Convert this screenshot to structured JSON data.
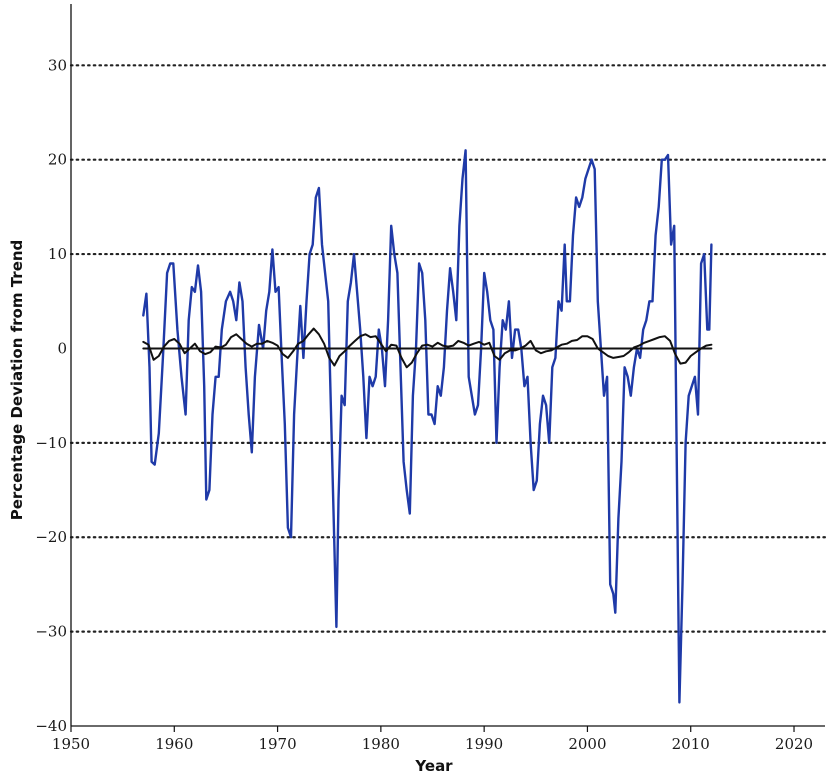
{
  "chart_data": {
    "type": "line",
    "title": "",
    "xlabel": "Year",
    "ylabel": "Percentage Deviation from Trend",
    "xlim": [
      1950,
      2023
    ],
    "ylim": [
      -40,
      33
    ],
    "x_ticks": [
      1950,
      1960,
      1970,
      1980,
      1990,
      2000,
      2010,
      2020
    ],
    "y_ticks": [
      30,
      20,
      10,
      0,
      -10,
      -20,
      -30,
      -40
    ],
    "grid": "horizontal dotted at y = 30, 20, 10, -10, -20, -30",
    "legend": "none",
    "series": [
      {
        "color": "#1f3aa8",
        "points": [
          [
            1957.0,
            3.5
          ],
          [
            1957.3,
            5.8
          ],
          [
            1957.6,
            -2
          ],
          [
            1957.8,
            -12
          ],
          [
            1958.1,
            -12.3
          ],
          [
            1958.5,
            -9
          ],
          [
            1958.9,
            -1
          ],
          [
            1959.3,
            8
          ],
          [
            1959.6,
            9
          ],
          [
            1959.9,
            9
          ],
          [
            1960.3,
            2
          ],
          [
            1960.7,
            -3
          ],
          [
            1961.1,
            -7
          ],
          [
            1961.4,
            3
          ],
          [
            1961.7,
            6.5
          ],
          [
            1962.0,
            6
          ],
          [
            1962.3,
            8.8
          ],
          [
            1962.6,
            6
          ],
          [
            1962.9,
            -4
          ],
          [
            1963.1,
            -16
          ],
          [
            1963.4,
            -15
          ],
          [
            1963.7,
            -7
          ],
          [
            1964.0,
            -3
          ],
          [
            1964.3,
            -3
          ],
          [
            1964.6,
            2
          ],
          [
            1965.0,
            5
          ],
          [
            1965.4,
            6
          ],
          [
            1965.7,
            5
          ],
          [
            1966.0,
            3
          ],
          [
            1966.3,
            7
          ],
          [
            1966.6,
            5
          ],
          [
            1966.9,
            -2
          ],
          [
            1967.2,
            -7
          ],
          [
            1967.5,
            -11
          ],
          [
            1967.8,
            -3
          ],
          [
            1968.2,
            2.5
          ],
          [
            1968.6,
            0
          ],
          [
            1968.9,
            4
          ],
          [
            1969.2,
            6
          ],
          [
            1969.5,
            10.5
          ],
          [
            1969.8,
            6
          ],
          [
            1970.1,
            6.5
          ],
          [
            1970.4,
            -1
          ],
          [
            1970.7,
            -8
          ],
          [
            1971.0,
            -19
          ],
          [
            1971.3,
            -20
          ],
          [
            1971.6,
            -7
          ],
          [
            1971.9,
            -1
          ],
          [
            1972.2,
            4.5
          ],
          [
            1972.5,
            -1
          ],
          [
            1972.8,
            5
          ],
          [
            1973.1,
            10
          ],
          [
            1973.4,
            11
          ],
          [
            1973.7,
            16
          ],
          [
            1974.0,
            17
          ],
          [
            1974.3,
            11
          ],
          [
            1974.6,
            8
          ],
          [
            1974.9,
            5
          ],
          [
            1975.2,
            -8
          ],
          [
            1975.5,
            -21
          ],
          [
            1975.7,
            -29.5
          ],
          [
            1975.9,
            -16
          ],
          [
            1976.2,
            -5
          ],
          [
            1976.5,
            -6
          ],
          [
            1976.8,
            5
          ],
          [
            1977.1,
            7
          ],
          [
            1977.4,
            10
          ],
          [
            1977.7,
            6
          ],
          [
            1978.0,
            2
          ],
          [
            1978.3,
            -3
          ],
          [
            1978.6,
            -9.5
          ],
          [
            1978.9,
            -3
          ],
          [
            1979.2,
            -4
          ],
          [
            1979.5,
            -3
          ],
          [
            1979.8,
            2
          ],
          [
            1980.1,
            0
          ],
          [
            1980.4,
            -4
          ],
          [
            1980.7,
            3
          ],
          [
            1981.0,
            13
          ],
          [
            1981.3,
            10
          ],
          [
            1981.6,
            8
          ],
          [
            1981.9,
            -2
          ],
          [
            1982.2,
            -12
          ],
          [
            1982.5,
            -15
          ],
          [
            1982.8,
            -17.5
          ],
          [
            1983.1,
            -5
          ],
          [
            1983.4,
            0
          ],
          [
            1983.7,
            9
          ],
          [
            1984.0,
            8
          ],
          [
            1984.3,
            3
          ],
          [
            1984.6,
            -7
          ],
          [
            1984.9,
            -7
          ],
          [
            1985.2,
            -8
          ],
          [
            1985.5,
            -4
          ],
          [
            1985.8,
            -5
          ],
          [
            1986.1,
            -2
          ],
          [
            1986.4,
            4
          ],
          [
            1986.7,
            8.5
          ],
          [
            1987.0,
            6
          ],
          [
            1987.3,
            3
          ],
          [
            1987.6,
            13
          ],
          [
            1987.9,
            18
          ],
          [
            1988.2,
            21
          ],
          [
            1988.5,
            -3
          ],
          [
            1988.8,
            -5
          ],
          [
            1989.1,
            -7
          ],
          [
            1989.4,
            -6
          ],
          [
            1989.7,
            0
          ],
          [
            1990.0,
            8
          ],
          [
            1990.3,
            6
          ],
          [
            1990.6,
            3
          ],
          [
            1990.9,
            2
          ],
          [
            1991.2,
            -10
          ],
          [
            1991.5,
            -2
          ],
          [
            1991.8,
            3
          ],
          [
            1992.1,
            2
          ],
          [
            1992.4,
            5
          ],
          [
            1992.7,
            -1
          ],
          [
            1993.0,
            2
          ],
          [
            1993.3,
            2
          ],
          [
            1993.6,
            0
          ],
          [
            1993.9,
            -4
          ],
          [
            1994.2,
            -3
          ],
          [
            1994.5,
            -10
          ],
          [
            1994.8,
            -15
          ],
          [
            1995.1,
            -14
          ],
          [
            1995.4,
            -8
          ],
          [
            1995.7,
            -5
          ],
          [
            1996.0,
            -6
          ],
          [
            1996.3,
            -10
          ],
          [
            1996.6,
            -2
          ],
          [
            1996.9,
            -1
          ],
          [
            1997.2,
            5
          ],
          [
            1997.5,
            4
          ],
          [
            1997.8,
            11
          ],
          [
            1998.0,
            5
          ],
          [
            1998.3,
            5
          ],
          [
            1998.6,
            12
          ],
          [
            1998.9,
            16
          ],
          [
            1999.2,
            15
          ],
          [
            1999.5,
            16
          ],
          [
            1999.8,
            18
          ],
          [
            2000.1,
            19
          ],
          [
            2000.4,
            20
          ],
          [
            2000.7,
            19
          ],
          [
            2001.0,
            5
          ],
          [
            2001.3,
            0
          ],
          [
            2001.6,
            -5
          ],
          [
            2001.9,
            -3
          ],
          [
            2002.2,
            -25
          ],
          [
            2002.5,
            -26
          ],
          [
            2002.7,
            -28
          ],
          [
            2003.0,
            -18
          ],
          [
            2003.3,
            -12
          ],
          [
            2003.6,
            -2
          ],
          [
            2003.9,
            -3
          ],
          [
            2004.2,
            -5
          ],
          [
            2004.5,
            -2
          ],
          [
            2004.8,
            0
          ],
          [
            2005.1,
            -1
          ],
          [
            2005.4,
            2
          ],
          [
            2005.7,
            3
          ],
          [
            2006.0,
            5
          ],
          [
            2006.3,
            5
          ],
          [
            2006.6,
            12
          ],
          [
            2006.9,
            15
          ],
          [
            2007.2,
            20
          ],
          [
            2007.5,
            20
          ],
          [
            2007.8,
            20.5
          ],
          [
            2008.1,
            11
          ],
          [
            2008.4,
            13
          ],
          [
            2008.7,
            -17
          ],
          [
            2008.9,
            -37.5
          ],
          [
            2009.2,
            -25
          ],
          [
            2009.5,
            -10
          ],
          [
            2009.8,
            -5
          ],
          [
            2010.1,
            -4
          ],
          [
            2010.4,
            -3
          ],
          [
            2010.7,
            -7
          ],
          [
            2011.0,
            9
          ],
          [
            2011.3,
            10
          ],
          [
            2011.6,
            2
          ],
          [
            2011.8,
            2
          ],
          [
            2012.0,
            11
          ]
        ]
      },
      {
        "color": "#111111",
        "points": [
          [
            1957.0,
            0.7
          ],
          [
            1957.5,
            0.4
          ],
          [
            1958.0,
            -1.2
          ],
          [
            1958.5,
            -0.8
          ],
          [
            1959.0,
            0.2
          ],
          [
            1959.5,
            0.8
          ],
          [
            1960.0,
            1
          ],
          [
            1960.5,
            0.5
          ],
          [
            1961.0,
            -0.5
          ],
          [
            1961.5,
            0
          ],
          [
            1962.0,
            0.5
          ],
          [
            1962.5,
            -0.3
          ],
          [
            1963.0,
            -0.6
          ],
          [
            1963.5,
            -0.4
          ],
          [
            1964.0,
            0.2
          ],
          [
            1964.5,
            0.1
          ],
          [
            1965.0,
            0.4
          ],
          [
            1965.5,
            1.2
          ],
          [
            1966.0,
            1.5
          ],
          [
            1966.5,
            1
          ],
          [
            1967.0,
            0.5
          ],
          [
            1967.5,
            0.2
          ],
          [
            1968.0,
            0.5
          ],
          [
            1968.5,
            0.5
          ],
          [
            1969.0,
            0.8
          ],
          [
            1969.5,
            0.6
          ],
          [
            1970.0,
            0.3
          ],
          [
            1970.5,
            -0.6
          ],
          [
            1971.0,
            -1.0
          ],
          [
            1971.5,
            -0.3
          ],
          [
            1972.0,
            0.5
          ],
          [
            1972.5,
            0.8
          ],
          [
            1973.0,
            1.5
          ],
          [
            1973.5,
            2.1
          ],
          [
            1974.0,
            1.5
          ],
          [
            1974.5,
            0.5
          ],
          [
            1975.0,
            -1.0
          ],
          [
            1975.5,
            -1.8
          ],
          [
            1976.0,
            -0.8
          ],
          [
            1976.5,
            -0.3
          ],
          [
            1977.0,
            0.3
          ],
          [
            1977.5,
            0.8
          ],
          [
            1978.0,
            1.3
          ],
          [
            1978.5,
            1.5
          ],
          [
            1979.0,
            1.2
          ],
          [
            1979.5,
            1.3
          ],
          [
            1980.0,
            0.5
          ],
          [
            1980.5,
            -0.3
          ],
          [
            1981.0,
            0.4
          ],
          [
            1981.5,
            0.3
          ],
          [
            1982.0,
            -1.0
          ],
          [
            1982.5,
            -2
          ],
          [
            1983.0,
            -1.5
          ],
          [
            1983.5,
            -0.5
          ],
          [
            1984.0,
            0.3
          ],
          [
            1984.5,
            0.4
          ],
          [
            1985.0,
            0.2
          ],
          [
            1985.5,
            0.6
          ],
          [
            1986.0,
            0.3
          ],
          [
            1986.5,
            0.2
          ],
          [
            1987.0,
            0.3
          ],
          [
            1987.5,
            0.8
          ],
          [
            1988.0,
            0.6
          ],
          [
            1988.5,
            0.3
          ],
          [
            1989.0,
            0.5
          ],
          [
            1989.5,
            0.7
          ],
          [
            1990.0,
            0.4
          ],
          [
            1990.5,
            0.6
          ],
          [
            1991.0,
            -0.8
          ],
          [
            1991.5,
            -1.2
          ],
          [
            1992.0,
            -0.5
          ],
          [
            1992.5,
            -0.2
          ],
          [
            1993.0,
            -0.2
          ],
          [
            1993.5,
            0
          ],
          [
            1994.0,
            0.3
          ],
          [
            1994.5,
            0.8
          ],
          [
            1995.0,
            -0.2
          ],
          [
            1995.5,
            -0.5
          ],
          [
            1996.0,
            -0.3
          ],
          [
            1996.5,
            -0.2
          ],
          [
            1997.0,
            0.1
          ],
          [
            1997.5,
            0.4
          ],
          [
            1998.0,
            0.5
          ],
          [
            1998.5,
            0.8
          ],
          [
            1999.0,
            0.9
          ],
          [
            1999.5,
            1.3
          ],
          [
            2000.0,
            1.3
          ],
          [
            2000.5,
            1.0
          ],
          [
            2001.0,
            0
          ],
          [
            2001.5,
            -0.4
          ],
          [
            2002.0,
            -0.8
          ],
          [
            2002.5,
            -1.0
          ],
          [
            2003.0,
            -0.9
          ],
          [
            2003.5,
            -0.8
          ],
          [
            2004.0,
            -0.4
          ],
          [
            2004.5,
            0.1
          ],
          [
            2005.0,
            0.3
          ],
          [
            2005.5,
            0.6
          ],
          [
            2006.0,
            0.8
          ],
          [
            2006.5,
            1.0
          ],
          [
            2007.0,
            1.2
          ],
          [
            2007.5,
            1.3
          ],
          [
            2008.0,
            0.8
          ],
          [
            2008.5,
            -0.6
          ],
          [
            2009.0,
            -1.6
          ],
          [
            2009.5,
            -1.5
          ],
          [
            2010.0,
            -0.8
          ],
          [
            2010.5,
            -0.4
          ],
          [
            2011.0,
            0
          ],
          [
            2011.5,
            0.3
          ],
          [
            2012.0,
            0.4
          ]
        ]
      },
      {
        "color": "#111111",
        "points": [
          [
            1957.0,
            0
          ],
          [
            2012.0,
            0
          ]
        ]
      }
    ]
  }
}
